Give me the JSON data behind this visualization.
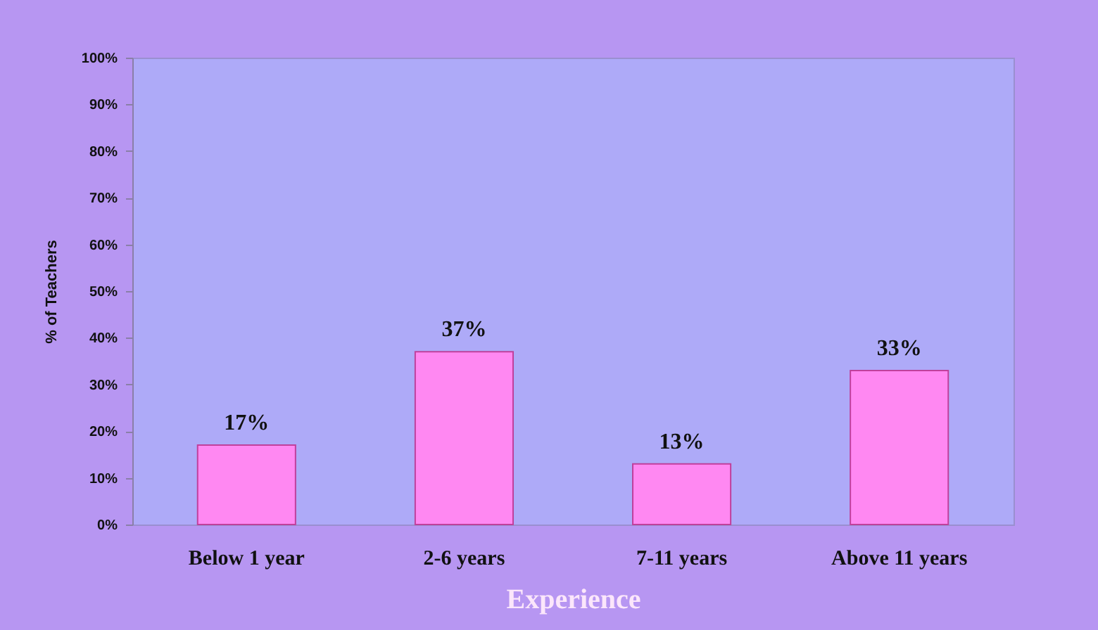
{
  "chart_data": {
    "type": "bar",
    "categories": [
      "Below 1 year",
      "2-6 years",
      "7-11 years",
      "Above 11 years"
    ],
    "values": [
      17,
      37,
      13,
      33
    ],
    "color": "#ff88f2",
    "value_labels": [
      "17%",
      "37%",
      "13%",
      "33%"
    ],
    "xlabel": "Experience",
    "ylabel": "% of Teachers",
    "ylim": [
      0,
      100
    ],
    "yticks": [
      {
        "value": 0,
        "label": "0%"
      },
      {
        "value": 10,
        "label": "10%"
      },
      {
        "value": 20,
        "label": "20%"
      },
      {
        "value": 30,
        "label": "30%"
      },
      {
        "value": 40,
        "label": "40%"
      },
      {
        "value": 50,
        "label": "50%"
      },
      {
        "value": 60,
        "label": "60%"
      },
      {
        "value": 70,
        "label": "70%"
      },
      {
        "value": 80,
        "label": "80%"
      },
      {
        "value": 90,
        "label": "90%"
      },
      {
        "value": 100,
        "label": "100%"
      }
    ],
    "grid": false
  }
}
